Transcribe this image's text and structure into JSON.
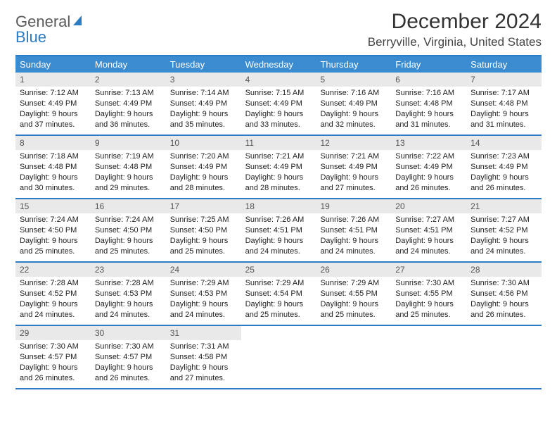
{
  "logo": {
    "text1": "General",
    "text2": "Blue",
    "icon_color": "#2b7cc4",
    "text1_color": "#5b5b5b",
    "text2_color": "#2b7cc4"
  },
  "title": "December 2024",
  "location": "Berryville, Virginia, United States",
  "colors": {
    "header_bg": "#3a8bd0",
    "border": "#2b7cc4",
    "daynum_bg": "#e9e9e9",
    "text": "#222222",
    "background": "#ffffff"
  },
  "day_names": [
    "Sunday",
    "Monday",
    "Tuesday",
    "Wednesday",
    "Thursday",
    "Friday",
    "Saturday"
  ],
  "weeks": [
    [
      {
        "n": "1",
        "sr": "Sunrise: 7:12 AM",
        "ss": "Sunset: 4:49 PM",
        "d1": "Daylight: 9 hours",
        "d2": "and 37 minutes."
      },
      {
        "n": "2",
        "sr": "Sunrise: 7:13 AM",
        "ss": "Sunset: 4:49 PM",
        "d1": "Daylight: 9 hours",
        "d2": "and 36 minutes."
      },
      {
        "n": "3",
        "sr": "Sunrise: 7:14 AM",
        "ss": "Sunset: 4:49 PM",
        "d1": "Daylight: 9 hours",
        "d2": "and 35 minutes."
      },
      {
        "n": "4",
        "sr": "Sunrise: 7:15 AM",
        "ss": "Sunset: 4:49 PM",
        "d1": "Daylight: 9 hours",
        "d2": "and 33 minutes."
      },
      {
        "n": "5",
        "sr": "Sunrise: 7:16 AM",
        "ss": "Sunset: 4:49 PM",
        "d1": "Daylight: 9 hours",
        "d2": "and 32 minutes."
      },
      {
        "n": "6",
        "sr": "Sunrise: 7:16 AM",
        "ss": "Sunset: 4:48 PM",
        "d1": "Daylight: 9 hours",
        "d2": "and 31 minutes."
      },
      {
        "n": "7",
        "sr": "Sunrise: 7:17 AM",
        "ss": "Sunset: 4:48 PM",
        "d1": "Daylight: 9 hours",
        "d2": "and 31 minutes."
      }
    ],
    [
      {
        "n": "8",
        "sr": "Sunrise: 7:18 AM",
        "ss": "Sunset: 4:48 PM",
        "d1": "Daylight: 9 hours",
        "d2": "and 30 minutes."
      },
      {
        "n": "9",
        "sr": "Sunrise: 7:19 AM",
        "ss": "Sunset: 4:48 PM",
        "d1": "Daylight: 9 hours",
        "d2": "and 29 minutes."
      },
      {
        "n": "10",
        "sr": "Sunrise: 7:20 AM",
        "ss": "Sunset: 4:49 PM",
        "d1": "Daylight: 9 hours",
        "d2": "and 28 minutes."
      },
      {
        "n": "11",
        "sr": "Sunrise: 7:21 AM",
        "ss": "Sunset: 4:49 PM",
        "d1": "Daylight: 9 hours",
        "d2": "and 28 minutes."
      },
      {
        "n": "12",
        "sr": "Sunrise: 7:21 AM",
        "ss": "Sunset: 4:49 PM",
        "d1": "Daylight: 9 hours",
        "d2": "and 27 minutes."
      },
      {
        "n": "13",
        "sr": "Sunrise: 7:22 AM",
        "ss": "Sunset: 4:49 PM",
        "d1": "Daylight: 9 hours",
        "d2": "and 26 minutes."
      },
      {
        "n": "14",
        "sr": "Sunrise: 7:23 AM",
        "ss": "Sunset: 4:49 PM",
        "d1": "Daylight: 9 hours",
        "d2": "and 26 minutes."
      }
    ],
    [
      {
        "n": "15",
        "sr": "Sunrise: 7:24 AM",
        "ss": "Sunset: 4:50 PM",
        "d1": "Daylight: 9 hours",
        "d2": "and 25 minutes."
      },
      {
        "n": "16",
        "sr": "Sunrise: 7:24 AM",
        "ss": "Sunset: 4:50 PM",
        "d1": "Daylight: 9 hours",
        "d2": "and 25 minutes."
      },
      {
        "n": "17",
        "sr": "Sunrise: 7:25 AM",
        "ss": "Sunset: 4:50 PM",
        "d1": "Daylight: 9 hours",
        "d2": "and 25 minutes."
      },
      {
        "n": "18",
        "sr": "Sunrise: 7:26 AM",
        "ss": "Sunset: 4:51 PM",
        "d1": "Daylight: 9 hours",
        "d2": "and 24 minutes."
      },
      {
        "n": "19",
        "sr": "Sunrise: 7:26 AM",
        "ss": "Sunset: 4:51 PM",
        "d1": "Daylight: 9 hours",
        "d2": "and 24 minutes."
      },
      {
        "n": "20",
        "sr": "Sunrise: 7:27 AM",
        "ss": "Sunset: 4:51 PM",
        "d1": "Daylight: 9 hours",
        "d2": "and 24 minutes."
      },
      {
        "n": "21",
        "sr": "Sunrise: 7:27 AM",
        "ss": "Sunset: 4:52 PM",
        "d1": "Daylight: 9 hours",
        "d2": "and 24 minutes."
      }
    ],
    [
      {
        "n": "22",
        "sr": "Sunrise: 7:28 AM",
        "ss": "Sunset: 4:52 PM",
        "d1": "Daylight: 9 hours",
        "d2": "and 24 minutes."
      },
      {
        "n": "23",
        "sr": "Sunrise: 7:28 AM",
        "ss": "Sunset: 4:53 PM",
        "d1": "Daylight: 9 hours",
        "d2": "and 24 minutes."
      },
      {
        "n": "24",
        "sr": "Sunrise: 7:29 AM",
        "ss": "Sunset: 4:53 PM",
        "d1": "Daylight: 9 hours",
        "d2": "and 24 minutes."
      },
      {
        "n": "25",
        "sr": "Sunrise: 7:29 AM",
        "ss": "Sunset: 4:54 PM",
        "d1": "Daylight: 9 hours",
        "d2": "and 25 minutes."
      },
      {
        "n": "26",
        "sr": "Sunrise: 7:29 AM",
        "ss": "Sunset: 4:55 PM",
        "d1": "Daylight: 9 hours",
        "d2": "and 25 minutes."
      },
      {
        "n": "27",
        "sr": "Sunrise: 7:30 AM",
        "ss": "Sunset: 4:55 PM",
        "d1": "Daylight: 9 hours",
        "d2": "and 25 minutes."
      },
      {
        "n": "28",
        "sr": "Sunrise: 7:30 AM",
        "ss": "Sunset: 4:56 PM",
        "d1": "Daylight: 9 hours",
        "d2": "and 26 minutes."
      }
    ],
    [
      {
        "n": "29",
        "sr": "Sunrise: 7:30 AM",
        "ss": "Sunset: 4:57 PM",
        "d1": "Daylight: 9 hours",
        "d2": "and 26 minutes."
      },
      {
        "n": "30",
        "sr": "Sunrise: 7:30 AM",
        "ss": "Sunset: 4:57 PM",
        "d1": "Daylight: 9 hours",
        "d2": "and 26 minutes."
      },
      {
        "n": "31",
        "sr": "Sunrise: 7:31 AM",
        "ss": "Sunset: 4:58 PM",
        "d1": "Daylight: 9 hours",
        "d2": "and 27 minutes."
      },
      {
        "empty": true
      },
      {
        "empty": true
      },
      {
        "empty": true
      },
      {
        "empty": true
      }
    ]
  ]
}
